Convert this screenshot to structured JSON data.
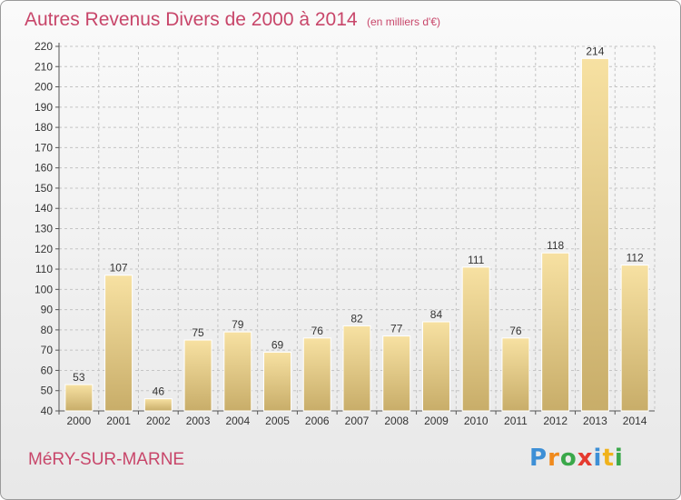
{
  "title": "Autres Revenus Divers de 2000 à 2014",
  "subtitle": "(en milliers d'€)",
  "commune": "MéRY-SUR-MARNE",
  "logo": {
    "letters": [
      "P",
      "r",
      "o",
      "x",
      "i",
      "t",
      "i"
    ],
    "colors": [
      "#3d8fd6",
      "#f08a1c",
      "#3aa84a",
      "#e53a2f",
      "#3d8fd6",
      "#f0b21c",
      "#3aa84a"
    ]
  },
  "colors": {
    "title": "#c8466a",
    "bar_light": "#f7e1a2",
    "bar_dark": "#c8ad69",
    "axis": "#555555",
    "grid": "#c4c4c4"
  },
  "chart_data": {
    "type": "bar",
    "categories": [
      "2000",
      "2001",
      "2002",
      "2003",
      "2004",
      "2005",
      "2006",
      "2007",
      "2008",
      "2009",
      "2010",
      "2011",
      "2012",
      "2013",
      "2014"
    ],
    "values": [
      53,
      107,
      46,
      75,
      79,
      69,
      76,
      82,
      77,
      84,
      111,
      76,
      118,
      214,
      112
    ],
    "ylim": [
      40,
      220
    ],
    "yticks": [
      40,
      50,
      60,
      70,
      80,
      90,
      100,
      110,
      120,
      130,
      140,
      150,
      160,
      170,
      180,
      190,
      200,
      210,
      220
    ],
    "grid": true,
    "data_labels": true
  }
}
